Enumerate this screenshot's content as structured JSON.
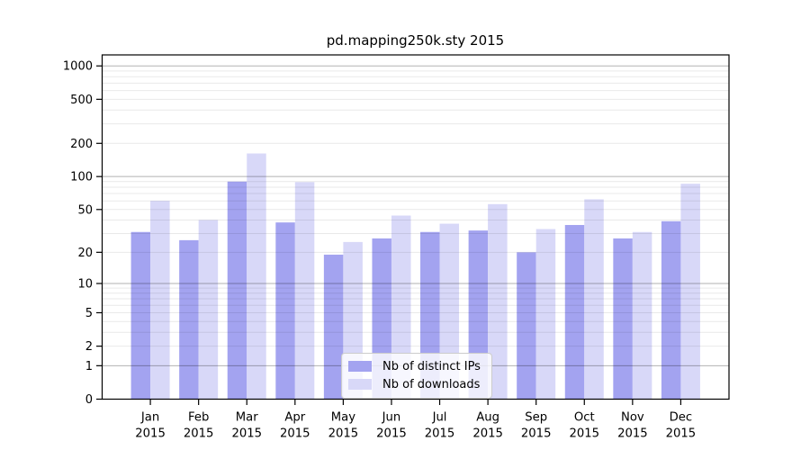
{
  "chart_data": {
    "type": "bar",
    "title": "pd.mapping250k.sty 2015",
    "xlabel": "",
    "ylabel": "",
    "yscale": "log(1+x)",
    "ylim": [
      0,
      1250
    ],
    "grid": true,
    "legend_position": "lower center",
    "categories": [
      "Jan",
      "Feb",
      "Mar",
      "Apr",
      "May",
      "Jun",
      "Jul",
      "Aug",
      "Sep",
      "Oct",
      "Nov",
      "Dec"
    ],
    "year_label": "2015",
    "series": [
      {
        "name": "Nb of distinct IPs",
        "color": "#a3a3f0",
        "values": [
          31,
          26,
          90,
          38,
          19,
          27,
          31,
          32,
          20,
          36,
          27,
          39
        ]
      },
      {
        "name": "Nb of downloads",
        "color": "#d8d8f8",
        "values": [
          60,
          40,
          162,
          89,
          25,
          44,
          37,
          56,
          33,
          62,
          31,
          86
        ]
      }
    ],
    "ytick_labels": [
      "0",
      "1",
      "2",
      "5",
      "10",
      "20",
      "50",
      "100",
      "200",
      "500",
      "1000"
    ],
    "yticks": [
      0,
      1,
      2,
      5,
      10,
      20,
      50,
      100,
      200,
      500,
      1000
    ],
    "major_gridlines": [
      1,
      10,
      100,
      1000
    ],
    "minor_gridlines": [
      2,
      3,
      4,
      5,
      6,
      7,
      8,
      9,
      20,
      30,
      40,
      50,
      60,
      70,
      80,
      90,
      200,
      300,
      400,
      500,
      600,
      700,
      800,
      900
    ],
    "colors": {
      "axis": "#000000",
      "major_grid": "#b3b3b3",
      "minor_grid": "#ebebeb",
      "background": "#ffffff"
    }
  }
}
